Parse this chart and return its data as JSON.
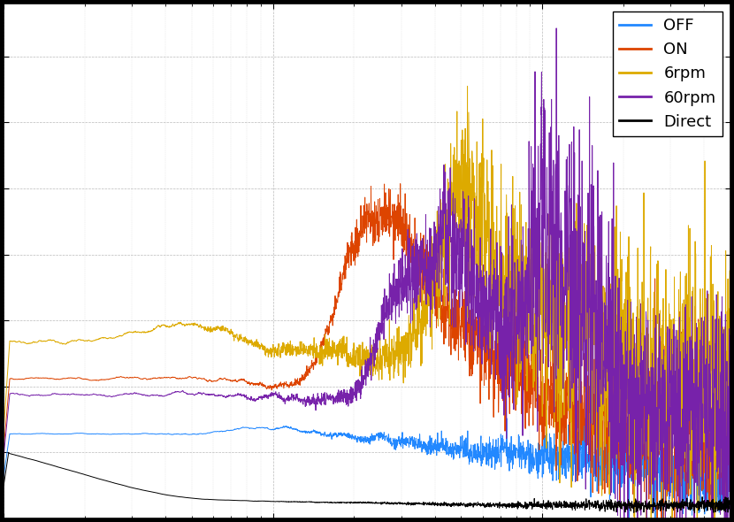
{
  "legend_labels": [
    "OFF",
    "ON",
    "6rpm",
    "60rpm",
    "Direct"
  ],
  "colors": [
    "#2288ff",
    "#dd4400",
    "#ddaa00",
    "#7722aa",
    "#000000"
  ],
  "figsize": [
    8.3,
    5.9
  ],
  "dpi": 100,
  "xlim": [
    1,
    500
  ],
  "legend_fontsize": 13
}
